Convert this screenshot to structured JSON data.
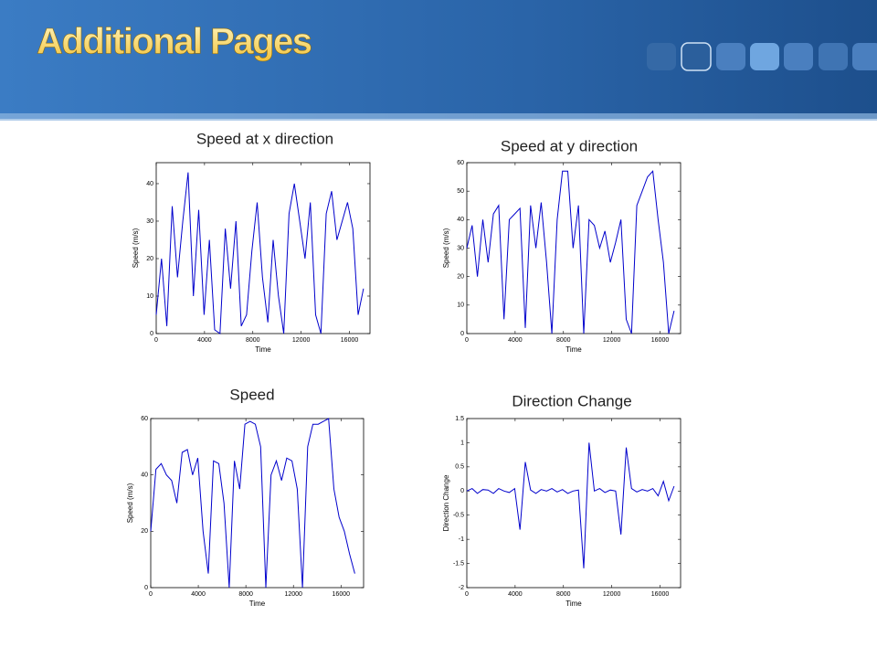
{
  "header": {
    "title": "Additional Pages"
  },
  "chart_data": [
    {
      "type": "line",
      "title": "Speed at x direction",
      "xlabel": "Time",
      "ylabel": "Speed (m/s)",
      "x": [
        0,
        440,
        880,
        1320,
        1760,
        2200,
        2640,
        3080,
        3520,
        3960,
        4400,
        4840,
        5280,
        5720,
        6160,
        6600,
        7040,
        7480,
        7920,
        8360,
        8800,
        9240,
        9680,
        10120,
        10560,
        11000,
        11440,
        11880,
        12320,
        12760,
        13200,
        13640,
        14080,
        14520,
        14960,
        15400,
        15840,
        16280,
        16720,
        17160
      ],
      "series": [
        {
          "color": "#0000cc",
          "values": [
            5,
            20,
            2,
            34,
            15,
            30,
            43,
            10,
            33,
            5,
            25,
            1,
            0,
            28,
            12,
            30,
            2,
            5,
            22,
            35,
            15,
            3,
            25,
            10,
            0,
            32,
            40,
            30,
            20,
            35,
            5,
            0,
            32,
            38,
            25,
            30,
            35,
            28,
            5,
            12
          ]
        }
      ],
      "xlim": [
        0,
        17700
      ],
      "xticks": [
        0,
        4000,
        8000,
        12000,
        16000
      ],
      "ylim": [
        0,
        45.6
      ],
      "yticks": [
        0,
        10,
        20,
        30,
        40
      ]
    },
    {
      "type": "line",
      "title": "Speed at y direction",
      "xlabel": "Time",
      "ylabel": "Speed (m/s)",
      "x": [
        0,
        440,
        880,
        1320,
        1760,
        2200,
        2640,
        3080,
        3520,
        3960,
        4400,
        4840,
        5280,
        5720,
        6160,
        6600,
        7040,
        7480,
        7920,
        8360,
        8800,
        9240,
        9680,
        10120,
        10560,
        11000,
        11440,
        11880,
        12320,
        12760,
        13200,
        13640,
        14080,
        14520,
        14960,
        15400,
        15840,
        16280,
        16720,
        17160
      ],
      "series": [
        {
          "color": "#0000cc",
          "values": [
            30,
            38,
            20,
            40,
            25,
            42,
            45,
            5,
            40,
            42,
            44,
            2,
            45,
            30,
            46,
            25,
            0,
            40,
            57,
            57,
            30,
            45,
            0,
            40,
            38,
            30,
            36,
            25,
            32,
            40,
            5,
            0,
            45,
            50,
            55,
            57,
            40,
            25,
            0,
            8
          ]
        }
      ],
      "xlim": [
        0,
        17700
      ],
      "xticks": [
        0,
        4000,
        8000,
        12000,
        16000
      ],
      "ylim": [
        0,
        60
      ],
      "yticks": [
        0,
        10,
        20,
        30,
        40,
        50,
        60
      ]
    },
    {
      "type": "line",
      "title": "Speed",
      "xlabel": "Time",
      "ylabel": "Speed (m/s)",
      "x": [
        0,
        440,
        880,
        1320,
        1760,
        2200,
        2640,
        3080,
        3520,
        3960,
        4400,
        4840,
        5280,
        5720,
        6160,
        6600,
        7040,
        7480,
        7920,
        8360,
        8800,
        9240,
        9680,
        10120,
        10560,
        11000,
        11440,
        11880,
        12320,
        12760,
        13200,
        13640,
        14080,
        14520,
        14960,
        15400,
        15840,
        16280,
        16720,
        17160
      ],
      "series": [
        {
          "color": "#0000cc",
          "values": [
            20,
            42,
            44,
            40,
            38,
            30,
            48,
            49,
            40,
            46,
            20,
            5,
            45,
            44,
            30,
            0,
            45,
            35,
            58,
            59,
            58,
            50,
            0,
            40,
            45,
            38,
            46,
            45,
            35,
            0,
            50,
            58,
            58,
            59,
            60,
            35,
            25,
            20,
            12,
            5
          ]
        }
      ],
      "xlim": [
        0,
        17900
      ],
      "xticks": [
        0,
        4000,
        8000,
        12000,
        16000
      ],
      "ylim": [
        0,
        60
      ],
      "yticks": [
        0,
        20,
        40,
        60
      ]
    },
    {
      "type": "line",
      "title": "Direction Change",
      "xlabel": "Time",
      "ylabel": "Direction Change",
      "x": [
        0,
        440,
        880,
        1320,
        1760,
        2200,
        2640,
        3080,
        3520,
        3960,
        4400,
        4840,
        5280,
        5720,
        6160,
        6600,
        7040,
        7480,
        7920,
        8360,
        8800,
        9240,
        9680,
        10120,
        10560,
        11000,
        11440,
        11880,
        12320,
        12760,
        13200,
        13640,
        14080,
        14520,
        14960,
        15400,
        15840,
        16280,
        16720,
        17160
      ],
      "series": [
        {
          "color": "#0000cc",
          "values": [
            0,
            0.05,
            -0.05,
            0.03,
            0.02,
            -0.05,
            0.05,
            0,
            -0.03,
            0.05,
            -0.8,
            0.6,
            0.02,
            -0.05,
            0.03,
            0,
            0.05,
            -0.02,
            0.03,
            -0.05,
            0,
            0.02,
            -1.6,
            1.0,
            0,
            0.05,
            -0.03,
            0.02,
            0,
            -0.9,
            0.9,
            0.05,
            -0.02,
            0.03,
            0,
            0.05,
            -0.1,
            0.2,
            -0.2,
            0.1
          ]
        }
      ],
      "xlim": [
        0,
        17700
      ],
      "xticks": [
        0,
        4000,
        8000,
        12000,
        16000
      ],
      "ylim": [
        -2,
        1.5
      ],
      "yticks": [
        -2,
        -1.5,
        -1,
        -0.5,
        0,
        0.5,
        1,
        1.5
      ]
    }
  ]
}
